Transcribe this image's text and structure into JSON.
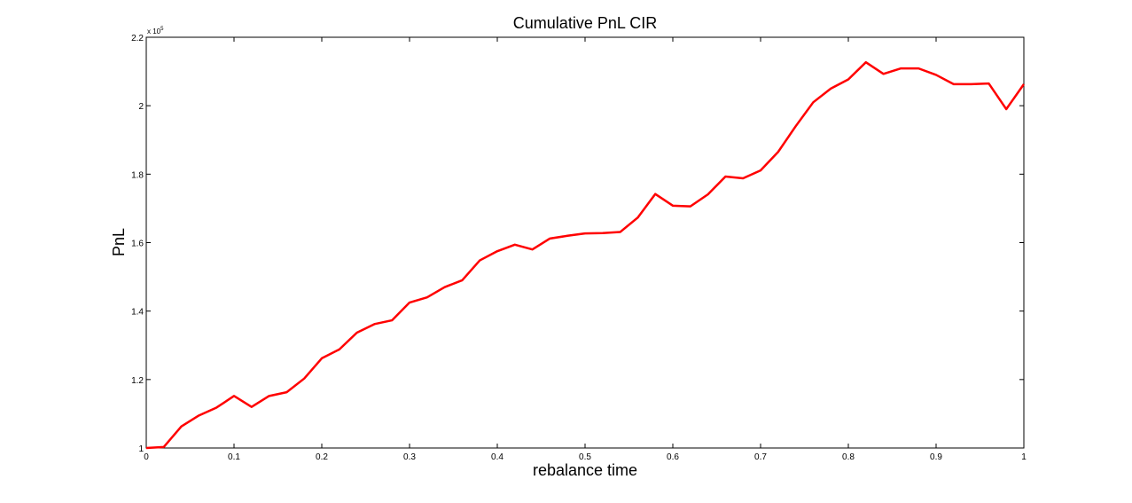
{
  "chart_data": {
    "type": "line",
    "title": "Cumulative PnL CIR",
    "xlabel": "rebalance time",
    "ylabel": "PnL",
    "y_multiplier": "x 10",
    "y_exponent": "5",
    "xlim": [
      0,
      1
    ],
    "ylim": [
      1.0,
      2.2
    ],
    "x_ticks": [
      "0",
      "0.1",
      "0.2",
      "0.3",
      "0.4",
      "0.5",
      "0.6",
      "0.7",
      "0.8",
      "0.9",
      "1"
    ],
    "y_ticks": [
      "1",
      "1.2",
      "1.4",
      "1.6",
      "1.8",
      "2",
      "2.2"
    ],
    "grid": false,
    "line_color": "#ff0000",
    "series": [
      {
        "x": [
          0,
          0.02,
          0.04,
          0.06,
          0.08,
          0.1,
          0.12,
          0.14,
          0.16,
          0.18,
          0.2,
          0.22,
          0.24,
          0.26,
          0.28,
          0.3,
          0.32,
          0.34,
          0.36,
          0.38,
          0.4,
          0.42,
          0.44,
          0.46,
          0.48,
          0.5,
          0.52,
          0.54,
          0.56,
          0.58,
          0.6,
          0.62,
          0.64,
          0.66,
          0.68,
          0.7,
          0.72,
          0.74,
          0.76,
          0.78,
          0.8,
          0.82,
          0.84,
          0.86,
          0.88,
          0.9,
          0.92,
          0.94,
          0.96,
          0.98,
          1.0
        ],
        "y": [
          1.0,
          1.003,
          1.063,
          1.095,
          1.118,
          1.152,
          1.12,
          1.152,
          1.163,
          1.203,
          1.262,
          1.288,
          1.337,
          1.362,
          1.373,
          1.425,
          1.44,
          1.47,
          1.49,
          1.548,
          1.575,
          1.594,
          1.58,
          1.612,
          1.62,
          1.627,
          1.628,
          1.631,
          1.673,
          1.742,
          1.708,
          1.706,
          1.741,
          1.793,
          1.788,
          1.811,
          1.865,
          1.94,
          2.01,
          2.05,
          2.077,
          2.127,
          2.093,
          2.109,
          2.109,
          2.09,
          2.063,
          2.063,
          2.065,
          1.99,
          2.063
        ]
      }
    ]
  }
}
